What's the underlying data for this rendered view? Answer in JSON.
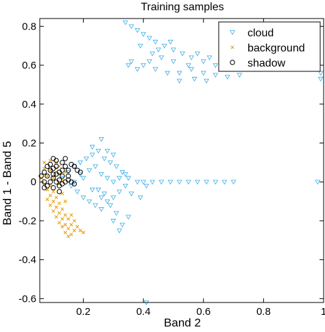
{
  "chart_data": {
    "type": "scatter",
    "title": "Training samples",
    "xlabel": "Band 2",
    "ylabel": "Band 1 - Band 5",
    "xlim": [
      0.055,
      1.0
    ],
    "ylim": [
      -0.62,
      0.84
    ],
    "xticks": [
      0.2,
      0.4,
      0.6,
      0.8,
      1.0
    ],
    "xtick_labels": [
      "0.2",
      "0.4",
      "0.6",
      "0.8",
      "1"
    ],
    "yticks": [
      -0.6,
      -0.4,
      -0.2,
      0,
      0.2,
      0.4,
      0.6,
      0.8
    ],
    "ytick_labels": [
      "-0.6",
      "-0.4",
      "-0.2",
      "0",
      "0.2",
      "0.4",
      "0.6",
      "0.8"
    ],
    "grid": false,
    "legend_position": "top-right",
    "series": [
      {
        "name": "cloud",
        "marker": "triangle-down-open",
        "color": "#4DB3E6",
        "points": [
          [
            0.34,
            0.82
          ],
          [
            0.36,
            0.8
          ],
          [
            0.38,
            0.78
          ],
          [
            0.4,
            0.76
          ],
          [
            0.42,
            0.74
          ],
          [
            0.44,
            0.72
          ],
          [
            0.47,
            0.7
          ],
          [
            0.5,
            0.68
          ],
          [
            0.53,
            0.66
          ],
          [
            0.56,
            0.64
          ],
          [
            0.6,
            0.62
          ],
          [
            0.64,
            0.6
          ],
          [
            0.36,
            0.62
          ],
          [
            0.4,
            0.6
          ],
          [
            0.44,
            0.58
          ],
          [
            0.48,
            0.56
          ],
          [
            0.52,
            0.56
          ],
          [
            0.56,
            0.58
          ],
          [
            0.6,
            0.56
          ],
          [
            0.64,
            0.55
          ],
          [
            0.68,
            0.54
          ],
          [
            0.72,
            0.55
          ],
          [
            0.35,
            0.6
          ],
          [
            0.38,
            0.58
          ],
          [
            0.42,
            0.62
          ],
          [
            0.46,
            0.64
          ],
          [
            0.5,
            0.62
          ],
          [
            0.55,
            0.6
          ],
          [
            0.58,
            0.66
          ],
          [
            0.62,
            0.64
          ],
          [
            0.66,
            0.62
          ],
          [
            0.7,
            0.6
          ],
          [
            0.73,
            0.58
          ],
          [
            0.45,
            0.68
          ],
          [
            0.49,
            0.72
          ],
          [
            0.43,
            0.66
          ],
          [
            0.39,
            0.7
          ],
          [
            0.52,
            0.52
          ],
          [
            0.57,
            0.53
          ],
          [
            0.61,
            0.52
          ],
          [
            0.99,
            0.56
          ],
          [
            0.99,
            0.53
          ],
          [
            0.13,
            0.02
          ],
          [
            0.15,
            0.05
          ],
          [
            0.17,
            0.08
          ],
          [
            0.19,
            0.1
          ],
          [
            0.21,
            0.12
          ],
          [
            0.23,
            0.14
          ],
          [
            0.25,
            0.16
          ],
          [
            0.27,
            0.12
          ],
          [
            0.29,
            0.1
          ],
          [
            0.31,
            0.08
          ],
          [
            0.33,
            0.05
          ],
          [
            0.35,
            0.02
          ],
          [
            0.16,
            -0.02
          ],
          [
            0.18,
            -0.05
          ],
          [
            0.2,
            -0.08
          ],
          [
            0.22,
            -0.1
          ],
          [
            0.24,
            -0.12
          ],
          [
            0.26,
            -0.14
          ],
          [
            0.28,
            -0.1
          ],
          [
            0.3,
            -0.08
          ],
          [
            0.32,
            -0.05
          ],
          [
            0.34,
            -0.02
          ],
          [
            0.36,
            -0.06
          ],
          [
            0.38,
            0.0
          ],
          [
            0.2,
            0.02
          ],
          [
            0.22,
            0.06
          ],
          [
            0.24,
            0.08
          ],
          [
            0.26,
            0.04
          ],
          [
            0.28,
            0.02
          ],
          [
            0.3,
            0.0
          ],
          [
            0.32,
            0.02
          ],
          [
            0.34,
            0.04
          ],
          [
            0.25,
            -0.04
          ],
          [
            0.27,
            -0.06
          ],
          [
            0.29,
            -0.12
          ],
          [
            0.31,
            -0.16
          ],
          [
            0.33,
            -0.22
          ],
          [
            0.35,
            -0.18
          ],
          [
            0.3,
            -0.2
          ],
          [
            0.32,
            -0.25
          ],
          [
            0.26,
            -0.08
          ],
          [
            0.23,
            -0.04
          ],
          [
            0.19,
            0.04
          ],
          [
            0.17,
            0.0
          ],
          [
            0.28,
            0.16
          ],
          [
            0.3,
            0.14
          ],
          [
            0.26,
            0.22
          ],
          [
            0.23,
            0.18
          ],
          [
            0.4,
            0.0
          ],
          [
            0.43,
            0.0
          ],
          [
            0.46,
            0.0
          ],
          [
            0.49,
            0.0
          ],
          [
            0.52,
            0.0
          ],
          [
            0.55,
            0.0
          ],
          [
            0.58,
            0.0
          ],
          [
            0.61,
            0.0
          ],
          [
            0.64,
            0.0
          ],
          [
            0.67,
            0.0
          ],
          [
            0.7,
            0.0
          ],
          [
            0.39,
            -0.08
          ],
          [
            0.41,
            -0.02
          ],
          [
            0.98,
            0.0
          ],
          [
            0.41,
            -0.62
          ]
        ]
      },
      {
        "name": "background",
        "marker": "cross",
        "color": "#E69A00",
        "points": [
          [
            0.07,
            0.07
          ],
          [
            0.08,
            0.03
          ],
          [
            0.09,
            0.06
          ],
          [
            0.1,
            0.02
          ],
          [
            0.11,
            0.07
          ],
          [
            0.12,
            0.04
          ],
          [
            0.13,
            0.01
          ],
          [
            0.07,
            -0.01
          ],
          [
            0.08,
            -0.04
          ],
          [
            0.09,
            -0.07
          ],
          [
            0.1,
            -0.1
          ],
          [
            0.11,
            -0.13
          ],
          [
            0.12,
            -0.16
          ],
          [
            0.13,
            -0.19
          ],
          [
            0.14,
            -0.22
          ],
          [
            0.15,
            -0.24
          ],
          [
            0.16,
            -0.22
          ],
          [
            0.17,
            -0.2
          ],
          [
            0.18,
            -0.23
          ],
          [
            0.19,
            -0.25
          ],
          [
            0.2,
            -0.26
          ],
          [
            0.1,
            -0.05
          ],
          [
            0.11,
            -0.08
          ],
          [
            0.12,
            -0.11
          ],
          [
            0.13,
            -0.14
          ],
          [
            0.14,
            -0.17
          ],
          [
            0.15,
            -0.19
          ],
          [
            0.16,
            -0.17
          ],
          [
            0.09,
            -0.12
          ],
          [
            0.1,
            -0.15
          ],
          [
            0.11,
            -0.18
          ],
          [
            0.12,
            -0.21
          ],
          [
            0.13,
            -0.23
          ],
          [
            0.14,
            -0.26
          ],
          [
            0.15,
            -0.28
          ],
          [
            0.08,
            -0.09
          ],
          [
            0.09,
            -0.02
          ],
          [
            0.12,
            0.08
          ],
          [
            0.14,
            0.05
          ],
          [
            0.06,
            0.02
          ],
          [
            0.07,
            0.1
          ],
          [
            0.09,
            0.11
          ],
          [
            0.13,
            -0.06
          ],
          [
            0.14,
            -0.1
          ],
          [
            0.17,
            -0.25
          ],
          [
            0.16,
            -0.27
          ],
          [
            0.11,
            0.1
          ],
          [
            0.12,
            -0.01
          ]
        ]
      },
      {
        "name": "shadow",
        "marker": "circle-open",
        "color": "#000000",
        "points": [
          [
            0.07,
            0.05
          ],
          [
            0.08,
            0.03
          ],
          [
            0.09,
            0.06
          ],
          [
            0.1,
            0.02
          ],
          [
            0.11,
            0.04
          ],
          [
            0.12,
            0.01
          ],
          [
            0.13,
            0.03
          ],
          [
            0.14,
            0.0
          ],
          [
            0.07,
            0.0
          ],
          [
            0.08,
            -0.02
          ],
          [
            0.09,
            0.0
          ],
          [
            0.1,
            -0.03
          ],
          [
            0.11,
            0.0
          ],
          [
            0.12,
            -0.02
          ],
          [
            0.13,
            -0.01
          ],
          [
            0.15,
            0.01
          ],
          [
            0.16,
            0.0
          ],
          [
            0.17,
            -0.01
          ],
          [
            0.09,
            0.09
          ],
          [
            0.1,
            0.07
          ],
          [
            0.11,
            0.08
          ],
          [
            0.08,
            0.08
          ],
          [
            0.13,
            0.1
          ],
          [
            0.14,
            0.08
          ],
          [
            0.15,
            0.06
          ],
          [
            0.14,
            0.12
          ],
          [
            0.16,
            0.09
          ],
          [
            0.17,
            0.08
          ],
          [
            0.18,
            0.06
          ],
          [
            0.19,
            0.05
          ],
          [
            0.06,
            0.03
          ],
          [
            0.07,
            -0.03
          ],
          [
            0.1,
            0.04
          ],
          [
            0.12,
            0.05
          ],
          [
            0.11,
            0.11
          ],
          [
            0.1,
            0.12
          ],
          [
            0.15,
            0.03
          ],
          [
            0.12,
            -0.05
          ],
          [
            0.13,
            0.06
          ]
        ]
      }
    ]
  }
}
